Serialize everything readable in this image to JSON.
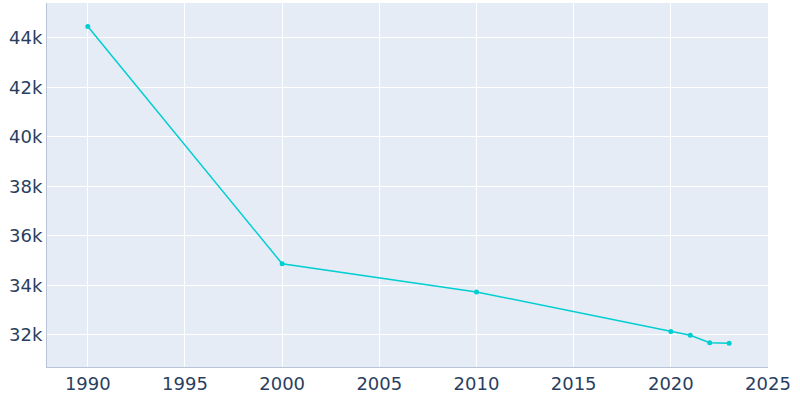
{
  "chart_data": {
    "type": "line",
    "x": [
      1990,
      2000,
      2010,
      2020,
      2021,
      2022,
      2023
    ],
    "values": [
      44450,
      34870,
      33730,
      32130,
      31980,
      31680,
      31660
    ],
    "color": "#00CED1",
    "marker": "circle",
    "xlim": [
      1987.9,
      2025
    ],
    "xticks": [
      1990,
      1995,
      2000,
      2005,
      2010,
      2015,
      2020,
      2025
    ],
    "ylim": [
      30700,
      45400
    ],
    "yticks": [
      {
        "value": 32000,
        "label": "32k"
      },
      {
        "value": 34000,
        "label": "34k"
      },
      {
        "value": 36000,
        "label": "36k"
      },
      {
        "value": 38000,
        "label": "38k"
      },
      {
        "value": 40000,
        "label": "40k"
      },
      {
        "value": 42000,
        "label": "42k"
      },
      {
        "value": 44000,
        "label": "44k"
      }
    ],
    "grid": true
  }
}
